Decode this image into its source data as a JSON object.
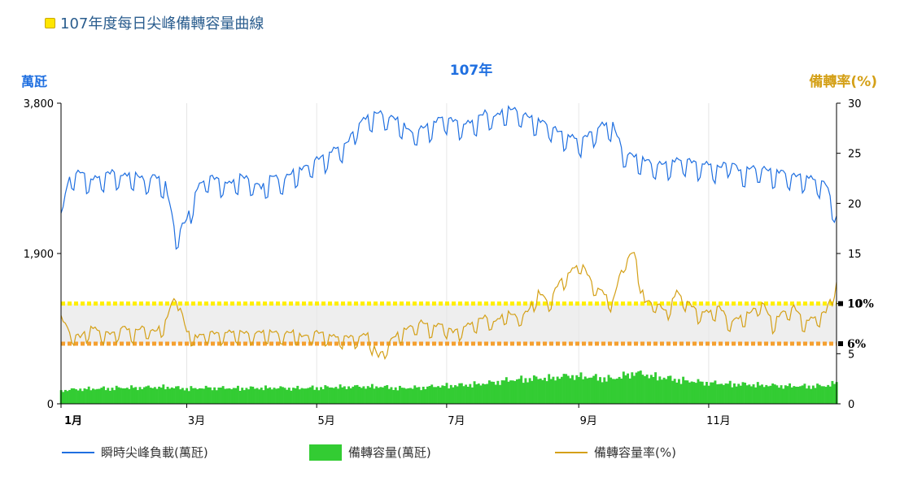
{
  "page": {
    "title": "107年度每日尖峰備轉容量曲線"
  },
  "chart_data": {
    "type": "line",
    "title": "107年",
    "y_left": {
      "label": "萬瓩",
      "min": 0,
      "max": 3800,
      "ticks": [
        0,
        1900,
        3800
      ],
      "tick_labels": [
        "0",
        "1,900",
        "3,800"
      ]
    },
    "y_right": {
      "label": "備轉率(%)",
      "min": 0,
      "max": 30,
      "ticks": [
        0,
        5,
        10,
        15,
        20,
        25,
        30
      ]
    },
    "x_axis": {
      "ticks": [
        {
          "label": "1月",
          "day": 1
        },
        {
          "label": "3月",
          "day": 60
        },
        {
          "label": "5月",
          "day": 121
        },
        {
          "label": "7月",
          "day": 182
        },
        {
          "label": "9月",
          "day": 244
        },
        {
          "label": "11月",
          "day": 305
        }
      ],
      "days": 365
    },
    "reference_lines": [
      {
        "label": "10%",
        "value": 10,
        "color": "#ffee00"
      },
      {
        "label": "6%",
        "value": 6,
        "color": "#f5a030"
      }
    ],
    "band": {
      "from": 6,
      "to": 10,
      "color": "#eeeeee"
    },
    "series": [
      {
        "name": "瞬時尖峰負載(萬瓩)",
        "axis": "left",
        "kind": "line",
        "color": "#1f6fe0",
        "points": [
          [
            1,
            2350
          ],
          [
            5,
            2850
          ],
          [
            10,
            2900
          ],
          [
            15,
            2800
          ],
          [
            20,
            2850
          ],
          [
            25,
            2900
          ],
          [
            30,
            2850
          ],
          [
            35,
            2880
          ],
          [
            40,
            2800
          ],
          [
            45,
            2850
          ],
          [
            50,
            2750
          ],
          [
            55,
            2100
          ],
          [
            60,
            2300
          ],
          [
            65,
            2700
          ],
          [
            70,
            2850
          ],
          [
            75,
            2800
          ],
          [
            80,
            2750
          ],
          [
            85,
            2850
          ],
          [
            90,
            2800
          ],
          [
            95,
            2700
          ],
          [
            100,
            2850
          ],
          [
            105,
            2800
          ],
          [
            110,
            2900
          ],
          [
            115,
            2950
          ],
          [
            120,
            3050
          ],
          [
            125,
            3100
          ],
          [
            130,
            3200
          ],
          [
            135,
            3250
          ],
          [
            140,
            3500
          ],
          [
            145,
            3600
          ],
          [
            150,
            3650
          ],
          [
            155,
            3600
          ],
          [
            160,
            3550
          ],
          [
            165,
            3400
          ],
          [
            170,
            3450
          ],
          [
            175,
            3500
          ],
          [
            180,
            3600
          ],
          [
            185,
            3550
          ],
          [
            190,
            3500
          ],
          [
            195,
            3550
          ],
          [
            200,
            3650
          ],
          [
            205,
            3600
          ],
          [
            210,
            3700
          ],
          [
            215,
            3680
          ],
          [
            220,
            3600
          ],
          [
            225,
            3550
          ],
          [
            230,
            3500
          ],
          [
            235,
            3400
          ],
          [
            240,
            3350
          ],
          [
            245,
            3300
          ],
          [
            250,
            3400
          ],
          [
            255,
            3500
          ],
          [
            260,
            3500
          ],
          [
            265,
            3150
          ],
          [
            270,
            3100
          ],
          [
            275,
            3050
          ],
          [
            280,
            3000
          ],
          [
            285,
            3000
          ],
          [
            290,
            3050
          ],
          [
            295,
            3050
          ],
          [
            300,
            3000
          ],
          [
            305,
            3000
          ],
          [
            310,
            2950
          ],
          [
            315,
            3050
          ],
          [
            320,
            2900
          ],
          [
            325,
            2950
          ],
          [
            330,
            2950
          ],
          [
            335,
            2900
          ],
          [
            340,
            2900
          ],
          [
            345,
            2850
          ],
          [
            350,
            2850
          ],
          [
            355,
            2800
          ],
          [
            360,
            2750
          ],
          [
            365,
            2350
          ]
        ]
      },
      {
        "name": "備轉容量(萬瓩)",
        "axis": "left",
        "kind": "bar",
        "color": "#33cc33",
        "points": [
          [
            1,
            170
          ],
          [
            10,
            190
          ],
          [
            20,
            195
          ],
          [
            30,
            205
          ],
          [
            40,
            210
          ],
          [
            50,
            215
          ],
          [
            60,
            195
          ],
          [
            70,
            205
          ],
          [
            80,
            200
          ],
          [
            90,
            200
          ],
          [
            100,
            205
          ],
          [
            110,
            200
          ],
          [
            120,
            205
          ],
          [
            130,
            215
          ],
          [
            140,
            220
          ],
          [
            150,
            220
          ],
          [
            160,
            200
          ],
          [
            170,
            210
          ],
          [
            180,
            230
          ],
          [
            190,
            240
          ],
          [
            200,
            260
          ],
          [
            210,
            300
          ],
          [
            220,
            320
          ],
          [
            230,
            330
          ],
          [
            240,
            360
          ],
          [
            250,
            340
          ],
          [
            260,
            320
          ],
          [
            270,
            400
          ],
          [
            280,
            350
          ],
          [
            290,
            310
          ],
          [
            300,
            280
          ],
          [
            310,
            260
          ],
          [
            320,
            250
          ],
          [
            330,
            240
          ],
          [
            340,
            230
          ],
          [
            350,
            225
          ],
          [
            360,
            230
          ],
          [
            365,
            270
          ]
        ]
      },
      {
        "name": "備轉容量率(%)",
        "axis": "right",
        "kind": "line",
        "color": "#d4a017",
        "points": [
          [
            1,
            8.5
          ],
          [
            5,
            7
          ],
          [
            10,
            6.5
          ],
          [
            15,
            7.5
          ],
          [
            20,
            7
          ],
          [
            25,
            6.8
          ],
          [
            30,
            7.5
          ],
          [
            35,
            7
          ],
          [
            40,
            7.5
          ],
          [
            45,
            7
          ],
          [
            50,
            8
          ],
          [
            55,
            11
          ],
          [
            60,
            7
          ],
          [
            65,
            6.5
          ],
          [
            70,
            7
          ],
          [
            75,
            6.8
          ],
          [
            80,
            7
          ],
          [
            85,
            7
          ],
          [
            90,
            6.8
          ],
          [
            95,
            7
          ],
          [
            100,
            7
          ],
          [
            105,
            6.8
          ],
          [
            110,
            7
          ],
          [
            115,
            6.5
          ],
          [
            120,
            7
          ],
          [
            125,
            6.8
          ],
          [
            130,
            6.5
          ],
          [
            135,
            6.5
          ],
          [
            140,
            6.5
          ],
          [
            145,
            6.8
          ],
          [
            150,
            4.5
          ],
          [
            155,
            6
          ],
          [
            160,
            7
          ],
          [
            165,
            7.5
          ],
          [
            170,
            8
          ],
          [
            175,
            7.5
          ],
          [
            180,
            7.8
          ],
          [
            185,
            7
          ],
          [
            190,
            7.5
          ],
          [
            195,
            8
          ],
          [
            200,
            8.5
          ],
          [
            205,
            8
          ],
          [
            210,
            9
          ],
          [
            215,
            8.5
          ],
          [
            220,
            9
          ],
          [
            225,
            11
          ],
          [
            230,
            10
          ],
          [
            235,
            12
          ],
          [
            240,
            13
          ],
          [
            245,
            14
          ],
          [
            250,
            12
          ],
          [
            255,
            11
          ],
          [
            260,
            10
          ],
          [
            265,
            14
          ],
          [
            270,
            15
          ],
          [
            275,
            10
          ],
          [
            280,
            10
          ],
          [
            285,
            9
          ],
          [
            290,
            11
          ],
          [
            295,
            10
          ],
          [
            300,
            9
          ],
          [
            305,
            9
          ],
          [
            310,
            9.5
          ],
          [
            315,
            8
          ],
          [
            320,
            8.5
          ],
          [
            325,
            9
          ],
          [
            330,
            10
          ],
          [
            335,
            8
          ],
          [
            340,
            9
          ],
          [
            345,
            9.5
          ],
          [
            350,
            8
          ],
          [
            355,
            8.5
          ],
          [
            360,
            9
          ],
          [
            365,
            12
          ]
        ]
      }
    ],
    "legend": [
      {
        "label": "瞬時尖峰負載(萬瓩)",
        "color": "#1f6fe0",
        "kind": "line"
      },
      {
        "label": "備轉容量(萬瓩)",
        "color": "#33cc33",
        "kind": "box"
      },
      {
        "label": "備轉容量率(%)",
        "color": "#d4a017",
        "kind": "line"
      }
    ]
  }
}
